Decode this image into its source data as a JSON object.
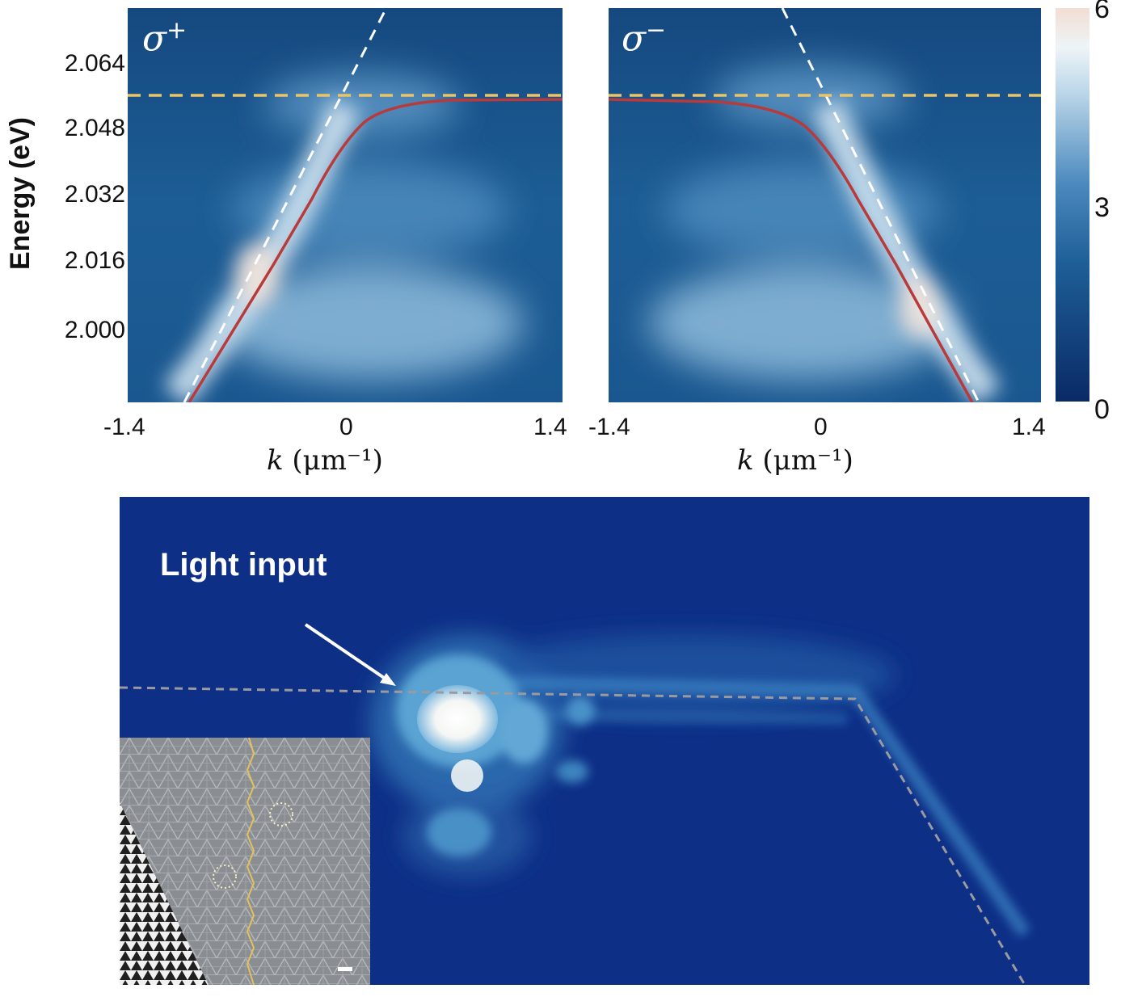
{
  "top": {
    "ylabel": "Energy (eV)",
    "yticks": [
      "2.064",
      "2.048",
      "2.032",
      "2.016",
      "2.000"
    ],
    "left_panel": {
      "polarization_label": "σ",
      "polarization_sign": "+",
      "xticks": [
        "-1.4",
        "0",
        "1.4"
      ],
      "xlabel_var": "k",
      "xlabel_unit": "(μm⁻¹)"
    },
    "right_panel": {
      "polarization_label": "σ",
      "polarization_sign": "−",
      "xticks": [
        "-1.4",
        "0",
        "1.4"
      ],
      "xlabel_var": "k",
      "xlabel_unit": "(μm⁻¹)"
    },
    "colorbar": {
      "ticks": [
        "0",
        "3",
        "6"
      ],
      "min": 0,
      "max": 6
    },
    "colors": {
      "background": "#1b5a92",
      "bright": "#e9f2f8",
      "fit_curve": "#b83a3a",
      "dashed_white": "#ffffff",
      "dashed_yellow": "#e8c56a"
    }
  },
  "bottom": {
    "annotation": "Light input",
    "colors": {
      "background": "#0d2f86",
      "glow": "#4f98cf",
      "path": "#9a9aa0"
    }
  },
  "inset": {
    "colors": {
      "lattice": "#8f9398",
      "boundary": "#e3c25b"
    }
  }
}
